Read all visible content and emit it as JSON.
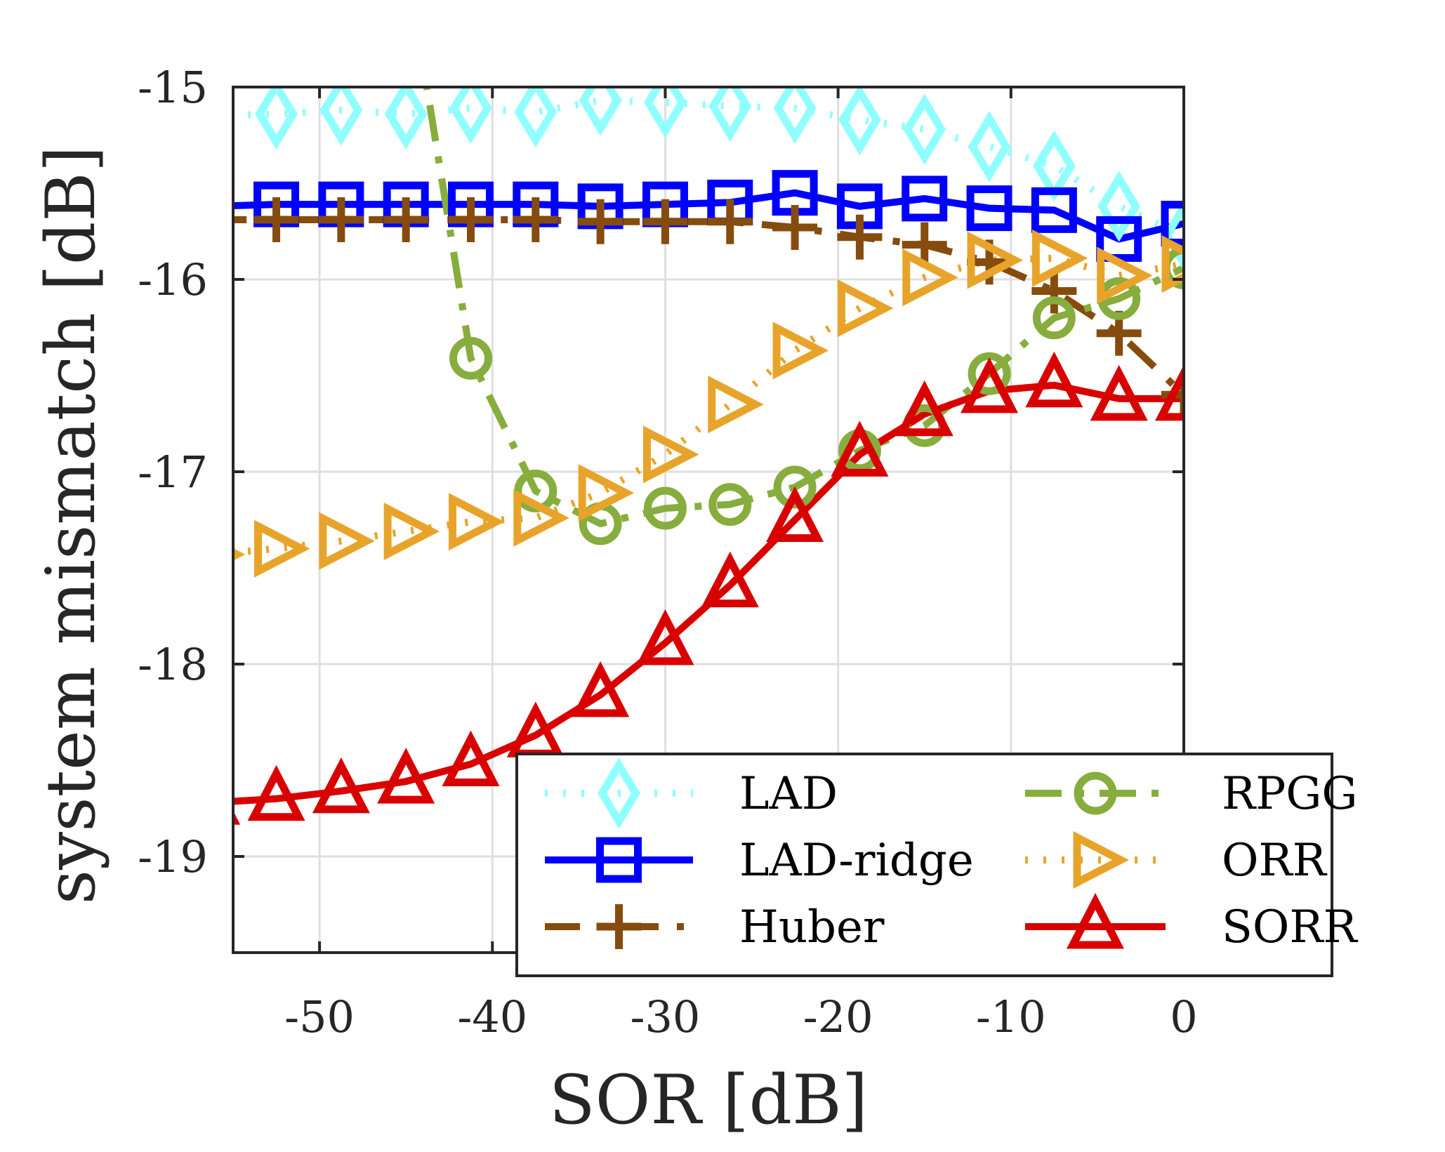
{
  "chart_data": {
    "type": "line",
    "title": "",
    "xlabel": "SOR [dB]",
    "ylabel": "system mismatch [dB]",
    "xlim": [
      -55,
      0
    ],
    "ylim": [
      -19.5,
      -15
    ],
    "xticks": [
      -50,
      -40,
      -30,
      -20,
      -10,
      0
    ],
    "xtick_labels": [
      "-50",
      "-40",
      "-30",
      "-20",
      "-10",
      "0"
    ],
    "yticks": [
      -15,
      -16,
      -17,
      -18,
      -19
    ],
    "ytick_labels": [
      "-15",
      "-16",
      "-17",
      "-18",
      "-19"
    ],
    "grid": true,
    "legend": {
      "placement": "bottom-right",
      "columns": 2
    },
    "x": [
      -56.25,
      -52.5,
      -48.75,
      -45,
      -41.25,
      -37.5,
      -33.75,
      -30,
      -26.25,
      -22.5,
      -18.75,
      -15,
      -11.25,
      -7.5,
      -3.75,
      0
    ],
    "series": [
      {
        "name": "LAD",
        "color": "#8fffff",
        "line_style": "dotted",
        "marker": "diamond",
        "values": [
          -15.15,
          -15.14,
          -15.12,
          -15.14,
          -15.11,
          -15.13,
          -15.07,
          -15.08,
          -15.1,
          -15.11,
          -15.17,
          -15.22,
          -15.31,
          -15.41,
          -15.62,
          -15.77
        ]
      },
      {
        "name": "LAD-ridge",
        "color": "#0000ff",
        "line_style": "solid",
        "marker": "square",
        "values": [
          -15.62,
          -15.61,
          -15.61,
          -15.61,
          -15.61,
          -15.61,
          -15.62,
          -15.61,
          -15.6,
          -15.55,
          -15.62,
          -15.58,
          -15.63,
          -15.64,
          -15.79,
          -15.71
        ]
      },
      {
        "name": "Huber",
        "color": "#854c0e",
        "line_style": "dashdot-long",
        "marker": "plus",
        "values": [
          -15.69,
          -15.69,
          -15.69,
          -15.69,
          -15.69,
          -15.69,
          -15.7,
          -15.7,
          -15.7,
          -15.73,
          -15.78,
          -15.82,
          -15.91,
          -16.06,
          -16.28,
          -16.6
        ]
      },
      {
        "name": "RPGG",
        "color": "#87ad3e",
        "line_style": "dashdot",
        "marker": "circle",
        "values": [
          null,
          null,
          null,
          -14.33,
          -16.41,
          -17.1,
          -17.27,
          -17.19,
          -17.17,
          -17.08,
          -16.89,
          -16.76,
          -16.49,
          -16.2,
          -16.1,
          -15.94
        ]
      },
      {
        "name": "ORR",
        "color": "#e8a42a",
        "line_style": "dotted",
        "marker": "triangle-right",
        "values": [
          -17.43,
          -17.4,
          -17.36,
          -17.31,
          -17.26,
          -17.24,
          -17.11,
          -16.91,
          -16.65,
          -16.37,
          -16.15,
          -15.99,
          -15.9,
          -15.89,
          -15.98,
          -15.92
        ]
      },
      {
        "name": "SORR",
        "color": "#d90000",
        "line_style": "solid",
        "marker": "triangle-up",
        "values": [
          -18.72,
          -18.7,
          -18.66,
          -18.61,
          -18.52,
          -18.37,
          -18.16,
          -17.89,
          -17.59,
          -17.25,
          -16.91,
          -16.7,
          -16.58,
          -16.55,
          -16.62,
          -16.62
        ]
      }
    ]
  }
}
